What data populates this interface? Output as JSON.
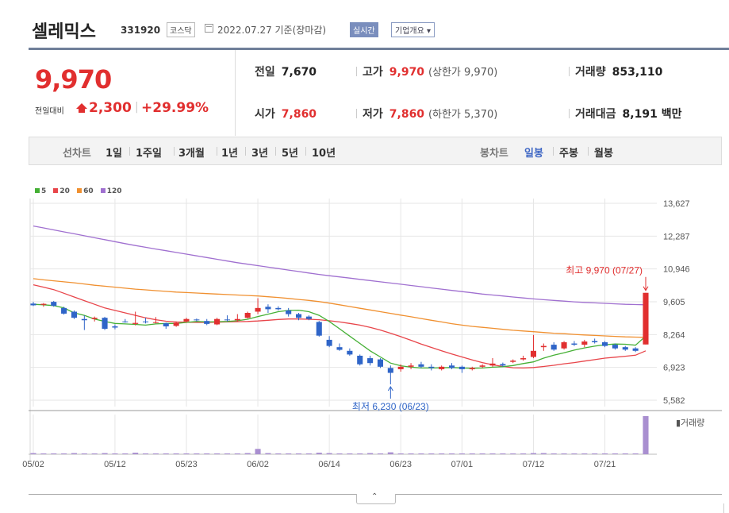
{
  "header": {
    "stock_name": "셀레믹스",
    "stock_code": "331920",
    "market": "코스닥",
    "ref_date": "2022.07.27 기준(장마감)",
    "realtime_label": "실시간",
    "company_label": "기업개요 ▾"
  },
  "price": {
    "current": "9,970",
    "change_label": "전일대비",
    "change_amount": "2,300",
    "separator": "|",
    "change_pct": "+29.99%"
  },
  "stats": {
    "prev_close": {
      "label": "전일",
      "value": "7,670"
    },
    "high": {
      "label": "고가",
      "value": "9,970",
      "note": "(상한가 9,970)"
    },
    "volume": {
      "label": "거래량",
      "value": "853,110"
    },
    "open": {
      "label": "시가",
      "value": "7,860"
    },
    "low": {
      "label": "저가",
      "value": "7,860",
      "note": "(하한가 5,370)"
    },
    "amount": {
      "label": "거래대금",
      "value": "8,191 백만"
    }
  },
  "periods": {
    "label": "선차트",
    "items": [
      "1일",
      "1주일",
      "3개월",
      "1년",
      "3년",
      "5년",
      "10년"
    ]
  },
  "candles": {
    "label": "봉차트",
    "items": [
      "일봉",
      "주봉",
      "월봉"
    ],
    "selected": "일봉"
  },
  "colors": {
    "up": "#e12f2f",
    "down": "#2f65c8",
    "ma5": "#45b035",
    "ma20": "#e8454a",
    "ma60": "#f09030",
    "ma120": "#a070d0",
    "volume": "#a98fd0",
    "accent": "#6f7f99"
  },
  "collapse_glyph": "⌃",
  "chart_data": {
    "type": "candlestick",
    "legend": [
      "5",
      "20",
      "60",
      "120"
    ],
    "y_ticks": [
      "13,627",
      "12,287",
      "10,946",
      "9,605",
      "8,264",
      "6,923",
      "5,582"
    ],
    "ylim": [
      5582,
      13627
    ],
    "x_ticks": [
      {
        "label": "05/02",
        "index": 0
      },
      {
        "label": "05/12",
        "index": 8
      },
      {
        "label": "05/23",
        "index": 15
      },
      {
        "label": "06/02",
        "index": 22
      },
      {
        "label": "06/14",
        "index": 29
      },
      {
        "label": "06/23",
        "index": 36
      },
      {
        "label": "07/01",
        "index": 42
      },
      {
        "label": "07/12",
        "index": 49
      },
      {
        "label": "07/21",
        "index": 56
      }
    ],
    "annotations": {
      "high": {
        "label": "최고 9,970 (07/27)",
        "index": 60,
        "value": 9970
      },
      "low": {
        "label": "최저 6,230 (06/23)",
        "index": 35,
        "value": 6230
      }
    },
    "volume_label": "거래량",
    "candles": [
      {
        "o": 9530,
        "h": 9600,
        "l": 9430,
        "c": 9460
      },
      {
        "o": 9480,
        "h": 9550,
        "l": 9400,
        "c": 9520
      },
      {
        "o": 9600,
        "h": 9640,
        "l": 9400,
        "c": 9440
      },
      {
        "o": 9350,
        "h": 9400,
        "l": 9080,
        "c": 9120
      },
      {
        "o": 9200,
        "h": 9250,
        "l": 8900,
        "c": 8950
      },
      {
        "o": 8900,
        "h": 9050,
        "l": 8450,
        "c": 8850
      },
      {
        "o": 8900,
        "h": 9000,
        "l": 8800,
        "c": 8950
      },
      {
        "o": 8950,
        "h": 8990,
        "l": 8450,
        "c": 8500
      },
      {
        "o": 8600,
        "h": 8680,
        "l": 8480,
        "c": 8550
      },
      {
        "o": 8800,
        "h": 8900,
        "l": 8750,
        "c": 8780
      },
      {
        "o": 8700,
        "h": 9200,
        "l": 8640,
        "c": 8740
      },
      {
        "o": 8800,
        "h": 8950,
        "l": 8720,
        "c": 8780
      },
      {
        "o": 8750,
        "h": 8980,
        "l": 8720,
        "c": 8770
      },
      {
        "o": 8730,
        "h": 8750,
        "l": 8500,
        "c": 8600
      },
      {
        "o": 8620,
        "h": 8800,
        "l": 8580,
        "c": 8750
      },
      {
        "o": 8800,
        "h": 8950,
        "l": 8750,
        "c": 8900
      },
      {
        "o": 8880,
        "h": 8920,
        "l": 8800,
        "c": 8850
      },
      {
        "o": 8820,
        "h": 8900,
        "l": 8650,
        "c": 8700
      },
      {
        "o": 8680,
        "h": 8950,
        "l": 8650,
        "c": 8900
      },
      {
        "o": 8880,
        "h": 9050,
        "l": 8800,
        "c": 8850
      },
      {
        "o": 8850,
        "h": 9100,
        "l": 8800,
        "c": 8900
      },
      {
        "o": 8950,
        "h": 9200,
        "l": 8920,
        "c": 9150
      },
      {
        "o": 9200,
        "h": 9750,
        "l": 9100,
        "c": 9350
      },
      {
        "o": 9400,
        "h": 9500,
        "l": 9150,
        "c": 9300
      },
      {
        "o": 9350,
        "h": 9420,
        "l": 9250,
        "c": 9300
      },
      {
        "o": 9250,
        "h": 9350,
        "l": 9000,
        "c": 9100
      },
      {
        "o": 9100,
        "h": 9150,
        "l": 8850,
        "c": 8950
      },
      {
        "o": 9000,
        "h": 9050,
        "l": 8850,
        "c": 8900
      },
      {
        "o": 8780,
        "h": 8820,
        "l": 8180,
        "c": 8220
      },
      {
        "o": 8050,
        "h": 8200,
        "l": 7750,
        "c": 7800
      },
      {
        "o": 7750,
        "h": 7900,
        "l": 7600,
        "c": 7640
      },
      {
        "o": 7600,
        "h": 7700,
        "l": 7400,
        "c": 7450
      },
      {
        "o": 7400,
        "h": 7450,
        "l": 7000,
        "c": 7050
      },
      {
        "o": 7300,
        "h": 7400,
        "l": 7000,
        "c": 7100
      },
      {
        "o": 7250,
        "h": 7300,
        "l": 6900,
        "c": 6950
      },
      {
        "o": 6900,
        "h": 7000,
        "l": 6230,
        "c": 6700
      },
      {
        "o": 6850,
        "h": 7050,
        "l": 6750,
        "c": 6950
      },
      {
        "o": 6950,
        "h": 7100,
        "l": 6850,
        "c": 7000
      },
      {
        "o": 7050,
        "h": 7150,
        "l": 6900,
        "c": 6950
      },
      {
        "o": 6950,
        "h": 7050,
        "l": 6800,
        "c": 6900
      },
      {
        "o": 6850,
        "h": 7000,
        "l": 6800,
        "c": 6950
      },
      {
        "o": 7000,
        "h": 7100,
        "l": 6850,
        "c": 6900
      },
      {
        "o": 6950,
        "h": 7000,
        "l": 6700,
        "c": 6850
      },
      {
        "o": 6850,
        "h": 6950,
        "l": 6800,
        "c": 6900
      },
      {
        "o": 6950,
        "h": 7050,
        "l": 6900,
        "c": 7000
      },
      {
        "o": 7000,
        "h": 7300,
        "l": 6950,
        "c": 7080
      },
      {
        "o": 7060,
        "h": 7120,
        "l": 6950,
        "c": 7000
      },
      {
        "o": 7150,
        "h": 7250,
        "l": 7100,
        "c": 7200
      },
      {
        "o": 7250,
        "h": 7400,
        "l": 7200,
        "c": 7300
      },
      {
        "o": 7350,
        "h": 8250,
        "l": 7300,
        "c": 7600
      },
      {
        "o": 7750,
        "h": 7900,
        "l": 7600,
        "c": 7800
      },
      {
        "o": 7850,
        "h": 7950,
        "l": 7600,
        "c": 7650
      },
      {
        "o": 7700,
        "h": 8000,
        "l": 7650,
        "c": 7950
      },
      {
        "o": 7900,
        "h": 8000,
        "l": 7800,
        "c": 7850
      },
      {
        "o": 7850,
        "h": 8050,
        "l": 7750,
        "c": 7980
      },
      {
        "o": 8000,
        "h": 8100,
        "l": 7900,
        "c": 7950
      },
      {
        "o": 7950,
        "h": 8000,
        "l": 7750,
        "c": 7800
      },
      {
        "o": 7850,
        "h": 7900,
        "l": 7650,
        "c": 7700
      },
      {
        "o": 7750,
        "h": 7800,
        "l": 7600,
        "c": 7650
      },
      {
        "o": 7700,
        "h": 7750,
        "l": 7550,
        "c": 7600
      },
      {
        "o": 7860,
        "h": 9970,
        "l": 7860,
        "c": 9970
      }
    ],
    "volumes": [
      3,
      2,
      2,
      2,
      3,
      2,
      2,
      3,
      2,
      2,
      4,
      2,
      2,
      2,
      2,
      2,
      2,
      2,
      2,
      2,
      2,
      3,
      14,
      3,
      2,
      2,
      2,
      2,
      4,
      3,
      2,
      2,
      2,
      3,
      2,
      5,
      2,
      2,
      2,
      2,
      2,
      2,
      2,
      2,
      2,
      2,
      2,
      2,
      2,
      3,
      3,
      2,
      2,
      2,
      2,
      2,
      2,
      2,
      2,
      2,
      100
    ],
    "ma5": [
      9500,
      9480,
      9450,
      9350,
      9150,
      9050,
      8900,
      8800,
      8720,
      8700,
      8680,
      8650,
      8700,
      8720,
      8720,
      8760,
      8800,
      8780,
      8790,
      8800,
      8830,
      8890,
      9000,
      9100,
      9200,
      9250,
      9260,
      9200,
      9050,
      8800,
      8500,
      8200,
      7900,
      7600,
      7350,
      7100,
      6990,
      6930,
      6900,
      6900,
      6910,
      6920,
      6900,
      6890,
      6900,
      6930,
      6950,
      7000,
      7080,
      7150,
      7300,
      7420,
      7520,
      7630,
      7720,
      7790,
      7850,
      7880,
      7870,
      7830,
      8200
    ],
    "ma20": [
      10300,
      10200,
      10100,
      9950,
      9800,
      9650,
      9500,
      9350,
      9250,
      9150,
      9050,
      8950,
      8870,
      8810,
      8780,
      8770,
      8760,
      8760,
      8770,
      8780,
      8790,
      8800,
      8820,
      8850,
      8880,
      8900,
      8900,
      8890,
      8870,
      8830,
      8780,
      8720,
      8650,
      8560,
      8450,
      8320,
      8180,
      8030,
      7880,
      7740,
      7600,
      7470,
      7350,
      7230,
      7120,
      7030,
      6960,
      6910,
      6900,
      6920,
      6960,
      7010,
      7070,
      7120,
      7180,
      7240,
      7300,
      7340,
      7380,
      7420,
      7600
    ],
    "ma60": [
      10550,
      10500,
      10460,
      10420,
      10380,
      10330,
      10280,
      10240,
      10200,
      10160,
      10120,
      10090,
      10060,
      10030,
      10000,
      9980,
      9960,
      9940,
      9920,
      9900,
      9880,
      9860,
      9840,
      9810,
      9780,
      9740,
      9700,
      9660,
      9610,
      9550,
      9480,
      9410,
      9340,
      9270,
      9200,
      9130,
      9060,
      8990,
      8920,
      8850,
      8780,
      8710,
      8650,
      8600,
      8560,
      8520,
      8480,
      8440,
      8410,
      8380,
      8350,
      8320,
      8300,
      8270,
      8250,
      8230,
      8210,
      8190,
      8170,
      8160,
      8150
    ],
    "ma120": [
      12700,
      12620,
      12540,
      12460,
      12380,
      12300,
      12220,
      12140,
      12060,
      11980,
      11900,
      11830,
      11760,
      11690,
      11620,
      11550,
      11480,
      11410,
      11340,
      11270,
      11200,
      11140,
      11080,
      11020,
      10960,
      10900,
      10840,
      10780,
      10720,
      10670,
      10620,
      10570,
      10520,
      10470,
      10420,
      10370,
      10320,
      10270,
      10220,
      10170,
      10120,
      10070,
      10020,
      9970,
      9920,
      9880,
      9840,
      9800,
      9760,
      9720,
      9690,
      9660,
      9630,
      9600,
      9580,
      9560,
      9540,
      9520,
      9500,
      9490,
      9480
    ]
  }
}
